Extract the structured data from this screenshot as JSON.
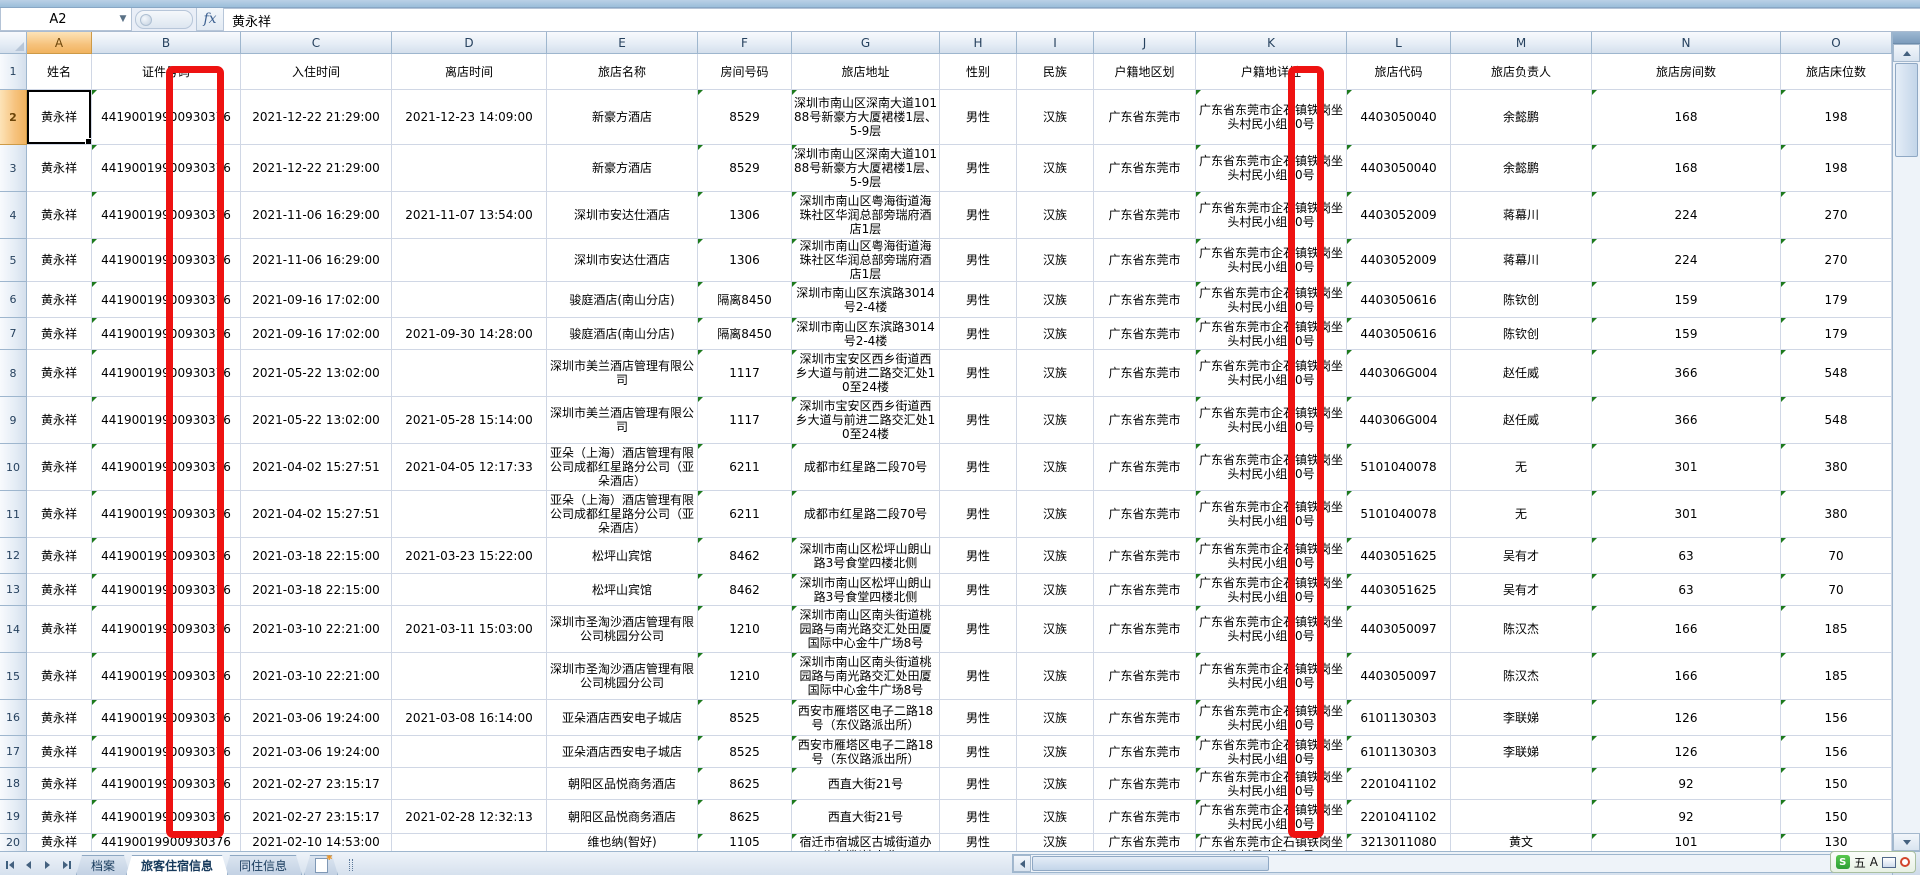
{
  "formula_bar": {
    "cell_reference": "A2",
    "function_label": "fx",
    "value": "黄永祥"
  },
  "columns": [
    {
      "letter": "A",
      "label": "姓名"
    },
    {
      "letter": "B",
      "label": "证件号码"
    },
    {
      "letter": "C",
      "label": "入住时间"
    },
    {
      "letter": "D",
      "label": "离店时间"
    },
    {
      "letter": "E",
      "label": "旅店名称"
    },
    {
      "letter": "F",
      "label": "房间号码"
    },
    {
      "letter": "G",
      "label": "旅店地址"
    },
    {
      "letter": "H",
      "label": "性别"
    },
    {
      "letter": "I",
      "label": "民族"
    },
    {
      "letter": "J",
      "label": "户籍地区划"
    },
    {
      "letter": "K",
      "label": "户籍地详址"
    },
    {
      "letter": "L",
      "label": "旅店代码"
    },
    {
      "letter": "M",
      "label": "旅店负责人"
    },
    {
      "letter": "N",
      "label": "旅店房间数"
    },
    {
      "letter": "O",
      "label": "旅店床位数"
    }
  ],
  "row_numbers": [
    "1",
    "2",
    "3",
    "4",
    "5",
    "6",
    "7",
    "8",
    "9",
    "10",
    "11",
    "12",
    "13",
    "14",
    "15",
    "16",
    "17",
    "18",
    "19",
    "20"
  ],
  "defaults": {
    "name": "黄永祥",
    "id_number": "44190019900930376",
    "gender": "男性",
    "ethnicity": "汉族",
    "region": "广东省东莞市",
    "home_address": "广东省东莞市企石镇铁岗坐头村民小组10号"
  },
  "rows": [
    {
      "num": 2,
      "checkin": "2021-12-22 21:29:00",
      "checkout": "2021-12-23 14:09:00",
      "hotel": "新豪方酒店",
      "room": "8529",
      "hotel_address": "深圳市南山区深南大道10188号新豪方大厦裙楼1层、5-9层",
      "hotel_code": "4403050040",
      "manager": "余懿鹏",
      "room_count": "168",
      "bed_count": "198"
    },
    {
      "num": 3,
      "checkin": "2021-12-22 21:29:00",
      "checkout": "",
      "hotel": "新豪方酒店",
      "room": "8529",
      "hotel_address": "深圳市南山区深南大道10188号新豪方大厦裙楼1层、5-9层",
      "hotel_code": "4403050040",
      "manager": "余懿鹏",
      "room_count": "168",
      "bed_count": "198"
    },
    {
      "num": 4,
      "checkin": "2021-11-06 16:29:00",
      "checkout": "2021-11-07 13:54:00",
      "hotel": "深圳市安达仕酒店",
      "room": "1306",
      "hotel_address": "深圳市南山区粤海街道海珠社区华润总部旁瑞府酒店1层",
      "hotel_code": "4403052009",
      "manager": "蒋幕川",
      "room_count": "224",
      "bed_count": "270"
    },
    {
      "num": 5,
      "checkin": "2021-11-06 16:29:00",
      "checkout": "",
      "hotel": "深圳市安达仕酒店",
      "room": "1306",
      "hotel_address": "深圳市南山区粤海街道海珠社区华润总部旁瑞府酒店1层",
      "hotel_code": "4403052009",
      "manager": "蒋幕川",
      "room_count": "224",
      "bed_count": "270"
    },
    {
      "num": 6,
      "checkin": "2021-09-16 17:02:00",
      "checkout": "",
      "hotel": "骏庭酒店(南山分店)",
      "room": "隔离8450",
      "hotel_address": "深圳市南山区东滨路3014号2-4楼",
      "hotel_code": "4403050616",
      "manager": "陈钦创",
      "room_count": "159",
      "bed_count": "179"
    },
    {
      "num": 7,
      "checkin": "2021-09-16 17:02:00",
      "checkout": "2021-09-30 14:28:00",
      "hotel": "骏庭酒店(南山分店)",
      "room": "隔离8450",
      "hotel_address": "深圳市南山区东滨路3014号2-4楼",
      "hotel_code": "4403050616",
      "manager": "陈钦创",
      "room_count": "159",
      "bed_count": "179"
    },
    {
      "num": 8,
      "checkin": "2021-05-22 13:02:00",
      "checkout": "",
      "hotel": "深圳市美兰酒店管理有限公司",
      "room": "1117",
      "hotel_address": "深圳市宝安区西乡街道西乡大道与前进二路交汇处10至24楼",
      "hotel_code": "440306G004",
      "manager": "赵任威",
      "room_count": "366",
      "bed_count": "548"
    },
    {
      "num": 9,
      "checkin": "2021-05-22 13:02:00",
      "checkout": "2021-05-28 15:14:00",
      "hotel": "深圳市美兰酒店管理有限公司",
      "room": "1117",
      "hotel_address": "深圳市宝安区西乡街道西乡大道与前进二路交汇处10至24楼",
      "hotel_code": "440306G004",
      "manager": "赵任威",
      "room_count": "366",
      "bed_count": "548"
    },
    {
      "num": 10,
      "checkin": "2021-04-02 15:27:51",
      "checkout": "2021-04-05 12:17:33",
      "hotel": "亚朵（上海）酒店管理有限公司成都红星路分公司（亚朵酒店）",
      "room": "6211",
      "hotel_address": "成都市红星路二段70号",
      "hotel_code": "5101040078",
      "manager": "无",
      "room_count": "301",
      "bed_count": "380"
    },
    {
      "num": 11,
      "checkin": "2021-04-02 15:27:51",
      "checkout": "",
      "hotel": "亚朵（上海）酒店管理有限公司成都红星路分公司（亚朵酒店）",
      "room": "6211",
      "hotel_address": "成都市红星路二段70号",
      "hotel_code": "5101040078",
      "manager": "无",
      "room_count": "301",
      "bed_count": "380"
    },
    {
      "num": 12,
      "checkin": "2021-03-18 22:15:00",
      "checkout": "2021-03-23 15:22:00",
      "hotel": "松坪山宾馆",
      "room": "8462",
      "hotel_address": "深圳市南山区松坪山朗山路3号食堂四楼北侧",
      "hotel_code": "4403051625",
      "manager": "吴有才",
      "room_count": "63",
      "bed_count": "70"
    },
    {
      "num": 13,
      "checkin": "2021-03-18 22:15:00",
      "checkout": "",
      "hotel": "松坪山宾馆",
      "room": "8462",
      "hotel_address": "深圳市南山区松坪山朗山路3号食堂四楼北侧",
      "hotel_code": "4403051625",
      "manager": "吴有才",
      "room_count": "63",
      "bed_count": "70"
    },
    {
      "num": 14,
      "checkin": "2021-03-10 22:21:00",
      "checkout": "2021-03-11 15:03:00",
      "hotel": "深圳市圣淘沙酒店管理有限公司桃园分公司",
      "room": "1210",
      "hotel_address": "深圳市南山区南头街道桃园路与南光路交汇处田厦国际中心金牛广场8号",
      "hotel_code": "4403050097",
      "manager": "陈汉杰",
      "room_count": "166",
      "bed_count": "185"
    },
    {
      "num": 15,
      "checkin": "2021-03-10 22:21:00",
      "checkout": "",
      "hotel": "深圳市圣淘沙酒店管理有限公司桃园分公司",
      "room": "1210",
      "hotel_address": "深圳市南山区南头街道桃园路与南光路交汇处田厦国际中心金牛广场8号",
      "hotel_code": "4403050097",
      "manager": "陈汉杰",
      "room_count": "166",
      "bed_count": "185"
    },
    {
      "num": 16,
      "checkin": "2021-03-06 19:24:00",
      "checkout": "2021-03-08 16:14:00",
      "hotel": "亚朵酒店西安电子城店",
      "room": "8525",
      "hotel_address": "西安市雁塔区电子二路18号（东仪路派出所）",
      "hotel_code": "6101130303",
      "manager": "李联娣",
      "room_count": "126",
      "bed_count": "156"
    },
    {
      "num": 17,
      "checkin": "2021-03-06 19:24:00",
      "checkout": "",
      "hotel": "亚朵酒店西安电子城店",
      "room": "8525",
      "hotel_address": "西安市雁塔区电子二路18号（东仪路派出所）",
      "hotel_code": "6101130303",
      "manager": "李联娣",
      "room_count": "126",
      "bed_count": "156"
    },
    {
      "num": 18,
      "checkin": "2021-02-27 23:15:17",
      "checkout": "",
      "hotel": "朝阳区品悦商务酒店",
      "room": "8625",
      "hotel_address": "西直大街21号",
      "hotel_code": "2201041102",
      "manager": "",
      "room_count": "92",
      "bed_count": "150"
    },
    {
      "num": 19,
      "checkin": "2021-02-27 23:15:17",
      "checkout": "2021-02-28 12:32:13",
      "hotel": "朝阳区品悦商务酒店",
      "room": "8625",
      "hotel_address": "西直大街21号",
      "hotel_code": "2201041102",
      "manager": "",
      "room_count": "92",
      "bed_count": "150"
    },
    {
      "num": 20,
      "checkin": "2021-02-10 14:53:00",
      "checkout": "",
      "hotel": "维也纳(智好)",
      "room": "1105",
      "hotel_address": "宿迁市宿城区古城街道办公大楼(地上北、",
      "hotel_code": "3213011080",
      "manager": "黄文",
      "room_count": "101",
      "bed_count": "130"
    }
  ],
  "sheet_tabs": {
    "tabs": [
      "档案",
      "旅客住宿信息",
      "同住信息"
    ],
    "active": "旅客住宿信息"
  },
  "ime_bar": {
    "brand": "S",
    "mode": "五",
    "letter": "A"
  }
}
